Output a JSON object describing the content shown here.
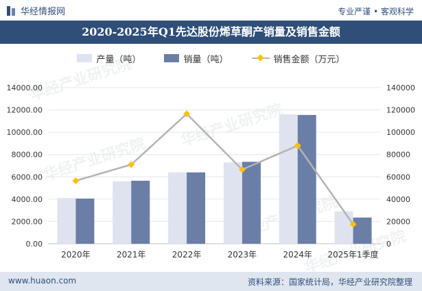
{
  "header": {
    "brand": "华经情报网",
    "tagline": "专业严谨 • 客观科学",
    "logo_icon": "bar-logo-icon"
  },
  "chart_data": {
    "type": "bar",
    "title": "2020-2025年Q1先达股份烯草酮产销量及销售金额",
    "categories": [
      "2020年",
      "2021年",
      "2022年",
      "2023年",
      "2024年",
      "2025年1季度"
    ],
    "series": [
      {
        "name": "产量（吨）",
        "type": "bar",
        "axis": "left",
        "color": "#dfe3ef",
        "values": [
          4100,
          5600,
          6400,
          7300,
          11600,
          2900
        ]
      },
      {
        "name": "销量（吨）",
        "type": "bar",
        "axis": "left",
        "color": "#6b7ea6",
        "values": [
          4050,
          5650,
          6400,
          7350,
          11550,
          2350
        ]
      },
      {
        "name": "销售金额（万元）",
        "type": "line",
        "axis": "right",
        "color": "#b3b3b3",
        "marker_color": "#ffc000",
        "values": [
          56500,
          71000,
          116500,
          66500,
          88000,
          17500
        ]
      }
    ],
    "y_left": {
      "min": 0,
      "max": 14000,
      "step": 2000,
      "tick_labels": [
        "0.00",
        "2000.00",
        "4000.00",
        "6000.00",
        "8000.00",
        "10000.00",
        "12000.00",
        "14000.00"
      ]
    },
    "y_right": {
      "min": 0,
      "max": 140000,
      "step": 20000,
      "tick_labels": [
        "0",
        "20000",
        "40000",
        "60000",
        "80000",
        "100000",
        "120000",
        "140000"
      ]
    },
    "grid": true,
    "legend_position": "top"
  },
  "watermark": "华经产业研究院",
  "footer": {
    "website": "www.huaon.com",
    "source": "资料来源：国家统计局，华经产业研究院整理"
  }
}
